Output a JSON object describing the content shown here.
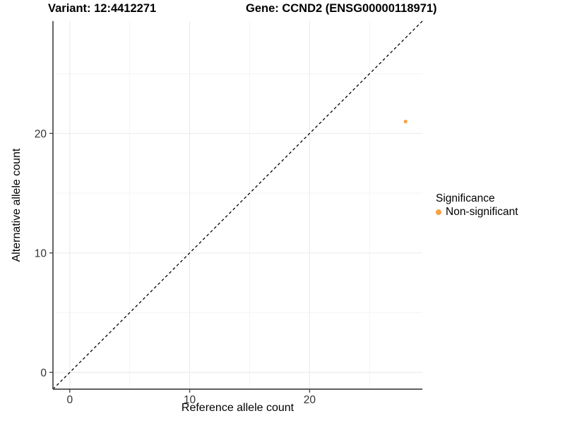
{
  "titles": {
    "variant": "Variant: 12:4412271",
    "gene": "Gene: CCND2 (ENSG00000118971)"
  },
  "chart_data": {
    "type": "scatter",
    "title": "Variant: 12:4412271   Gene: CCND2 (ENSG00000118971)",
    "xlabel": "Reference allele count",
    "ylabel": "Alternative allele count",
    "xlim": [
      -1.4,
      29.4
    ],
    "ylim": [
      -1.4,
      29.4
    ],
    "x_major_ticks": [
      0,
      10,
      20
    ],
    "y_major_ticks": [
      0,
      10,
      20
    ],
    "x_minor_ticks": [
      5,
      15,
      25
    ],
    "y_minor_ticks": [
      5,
      15,
      25
    ],
    "grid": true,
    "reference_line": {
      "kind": "abline",
      "slope": 1,
      "intercept": 0,
      "style": "dashed",
      "color": "#000000"
    },
    "series": [
      {
        "name": "Non-significant",
        "color": "#F9A242",
        "points": [
          {
            "x": 28,
            "y": 21
          }
        ]
      }
    ],
    "legend": {
      "title": "Significance",
      "position": "right",
      "entries": [
        {
          "label": "Non-significant",
          "color": "#F9A242"
        }
      ]
    }
  },
  "colors": {
    "point": "#F9A242",
    "axis_line": "#4a4a4a",
    "tick_label": "#333333",
    "grid_major": "#ececec",
    "grid_minor": "#f5f5f5",
    "reference_line": "#000000",
    "background": "#ffffff"
  }
}
